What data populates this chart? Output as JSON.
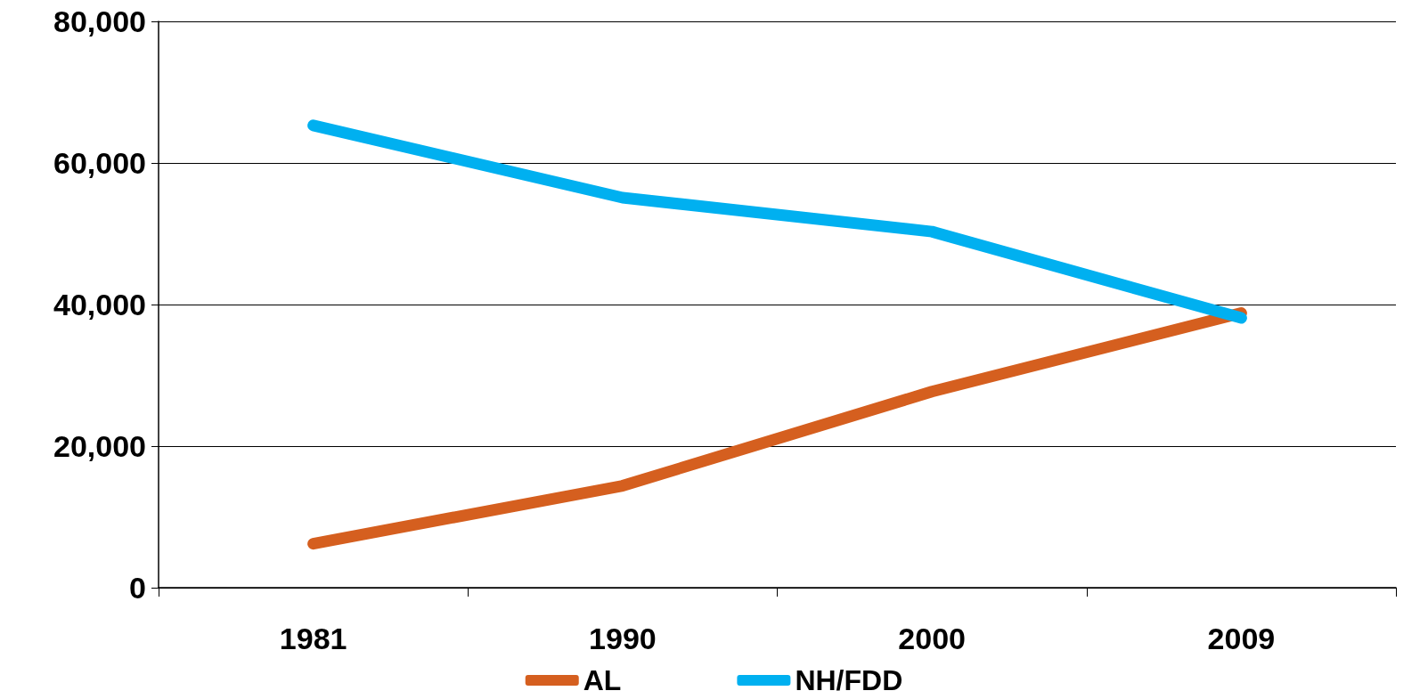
{
  "chart_data": {
    "type": "line",
    "categories": [
      "1981",
      "1990",
      "2000",
      "2009"
    ],
    "series": [
      {
        "name": "AL",
        "color": "#d55f1f",
        "values": [
          6200,
          14400,
          27700,
          38800
        ]
      },
      {
        "name": "NH/FDD",
        "color": "#00b0f0",
        "values": [
          65300,
          55100,
          50300,
          38100
        ]
      }
    ],
    "ylim": [
      0,
      80000
    ],
    "yticks": [
      {
        "value": 0,
        "label": "0"
      },
      {
        "value": 20000,
        "label": "20,000"
      },
      {
        "value": 40000,
        "label": "40,000"
      },
      {
        "value": 60000,
        "label": "60,000"
      },
      {
        "value": 80000,
        "label": "80,000"
      }
    ],
    "grid": "y",
    "legend": "bottom",
    "marker": "none",
    "line_style": "solid"
  }
}
